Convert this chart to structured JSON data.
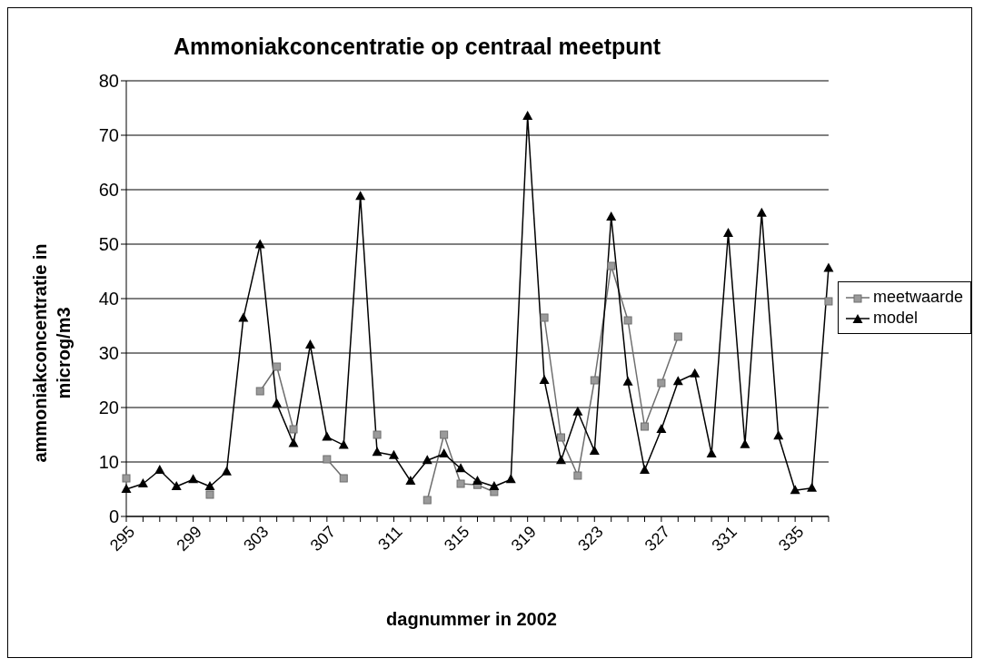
{
  "chart_data": {
    "type": "line",
    "title": "Ammoniakconcentratie op centraal meetpunt",
    "xlabel": "dagnummer in 2002",
    "ylabel": "ammoniakconcentratie in microg/m3",
    "categories": [
      "295",
      null,
      null,
      null,
      "299",
      null,
      null,
      null,
      "303",
      null,
      null,
      null,
      "307",
      null,
      null,
      null,
      "311",
      null,
      null,
      null,
      "315",
      null,
      null,
      null,
      "319",
      null,
      null,
      null,
      "323",
      null,
      null,
      null,
      "327",
      null,
      null,
      null,
      "331",
      null,
      null,
      null,
      "335",
      null,
      null
    ],
    "series": [
      {
        "name": "meetwaarde",
        "color": "#6e6e6e",
        "marker": "square",
        "values": [
          7,
          null,
          null,
          null,
          null,
          4,
          null,
          null,
          23,
          27.5,
          16,
          null,
          10.5,
          7,
          null,
          15,
          null,
          null,
          3,
          15,
          6,
          5.8,
          4.5,
          null,
          null,
          36.5,
          14.5,
          7.5,
          25,
          46,
          36,
          16.5,
          24.5,
          33,
          null,
          null,
          null,
          null,
          null,
          null,
          null,
          null,
          39.5
        ]
      },
      {
        "name": "model",
        "color": "#000000",
        "marker": "triangle",
        "values": [
          5,
          6,
          8.5,
          5.5,
          6.8,
          5.5,
          8.2,
          36.4,
          49.9,
          20.7,
          13.4,
          31.5,
          14.6,
          13.1,
          58.8,
          11.8,
          11.2,
          6.5,
          10.3,
          11.5,
          8.8,
          6.5,
          5.5,
          6.8,
          73.5,
          25,
          10.3,
          19.2,
          12,
          55,
          24.7,
          8.5,
          16,
          24.8,
          26.2,
          11.5,
          52,
          13.2,
          55.7,
          14.8,
          4.8,
          5.2,
          45.6
        ]
      }
    ],
    "ylim": [
      0,
      80
    ],
    "yticks": [
      0,
      10,
      20,
      30,
      40,
      50,
      60,
      70,
      80
    ],
    "grid": "y",
    "legend": "right",
    "line_style": "solid"
  }
}
